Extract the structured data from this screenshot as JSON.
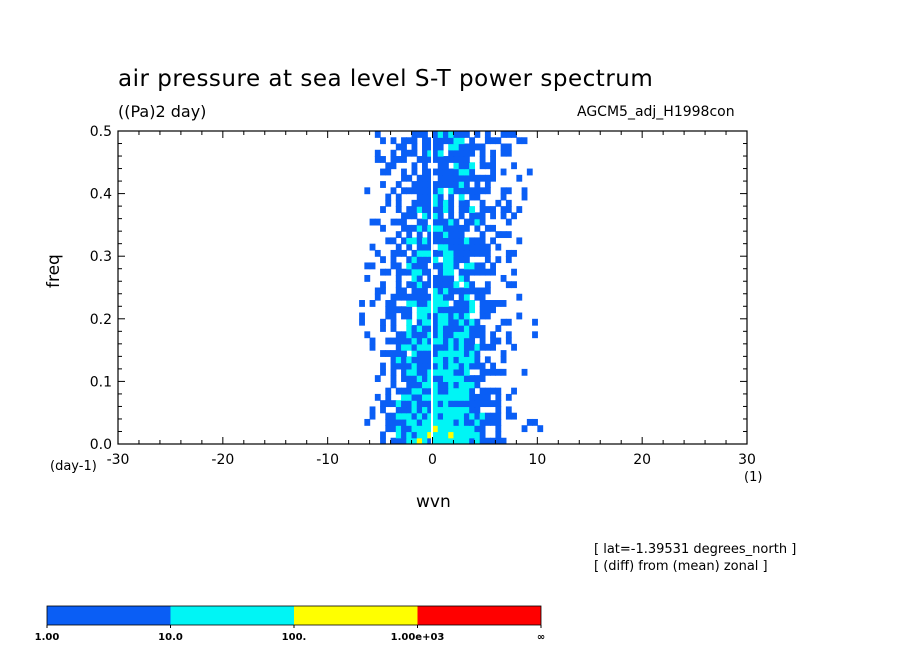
{
  "chart_data": {
    "type": "heatmap",
    "title": "air pressure at sea level S-T power spectrum",
    "units": "((Pa)2 day)",
    "experiment": "AGCM5_adj_H1998con",
    "xlabel": "wvn",
    "ylabel": "freq",
    "x_unit_left": "(day-1)",
    "x_unit_right": "(1)",
    "xlim": [
      -30,
      30
    ],
    "ylim": [
      0,
      0.5
    ],
    "x_ticks": [
      "-30",
      "-20",
      "-10",
      "0",
      "10",
      "20",
      "30"
    ],
    "y_ticks": [
      "0.0",
      "0.1",
      "0.2",
      "0.3",
      "0.4",
      "0.5"
    ],
    "notes": [
      "[ lat=-1.39531 degrees_north ]",
      "[ (diff) from (mean) zonal ]"
    ],
    "colorbar": {
      "labels": [
        "1.00",
        "10.0",
        "100.",
        "1.00e+03",
        "∞"
      ],
      "colors": [
        "#0a5ef5",
        "#00f5f5",
        "#ffff00",
        "#ff0000"
      ]
    }
  }
}
